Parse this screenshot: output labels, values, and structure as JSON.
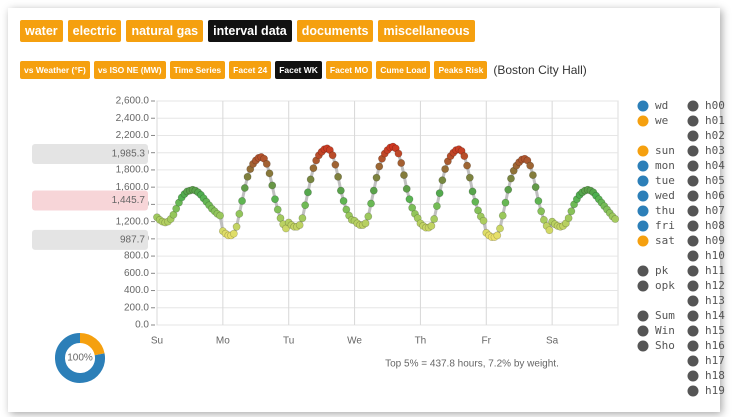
{
  "nav": {
    "tabs": [
      "water",
      "electric",
      "natural gas",
      "interval data",
      "documents",
      "miscellaneous"
    ],
    "active_index": 3
  },
  "subnav": {
    "tabs": [
      "vs Weather (°F)",
      "vs ISO NE (MW)",
      "Time Series",
      "Facet 24",
      "Facet WK",
      "Facet MO",
      "Cume Load",
      "Peaks Risk"
    ],
    "active_index": 4,
    "site": "(Boston City Hall)"
  },
  "chart_data": {
    "type": "scatter",
    "annotation": "Top 5% = 437.8 hours, 7.2% by weight.",
    "xlim": [
      0,
      168
    ],
    "xticks": [
      {
        "value": 0,
        "label": "Su"
      },
      {
        "value": 24,
        "label": "Mo"
      },
      {
        "value": 48,
        "label": "Tu"
      },
      {
        "value": 72,
        "label": "We"
      },
      {
        "value": 96,
        "label": "Th"
      },
      {
        "value": 120,
        "label": "Fr"
      },
      {
        "value": 144,
        "label": "Sa"
      }
    ],
    "ylim": [
      0,
      2600
    ],
    "yticks": [
      {
        "value": 0,
        "label": "0.0"
      },
      {
        "value": 200,
        "label": "200.0"
      },
      {
        "value": 400,
        "label": "400.0"
      },
      {
        "value": 600,
        "label": "600.0"
      },
      {
        "value": 800,
        "label": "800.0"
      },
      {
        "value": 1000,
        "label": "1,000.0"
      },
      {
        "value": 1200,
        "label": "1,200.0"
      },
      {
        "value": 1400,
        "label": "1,400.0"
      },
      {
        "value": 1600,
        "label": "1,600.0"
      },
      {
        "value": 1800,
        "label": "1,800.0"
      },
      {
        "value": 2000,
        "label": "2,000.0"
      },
      {
        "value": 2200,
        "label": "2,200.0"
      },
      {
        "value": 2400,
        "label": "2,400.0"
      },
      {
        "value": 2600,
        "label": "2,600.0"
      }
    ],
    "grid": true,
    "trend_color": "#b0b0b0",
    "color_stops": [
      {
        "value": 1000,
        "color": "#f3e36b"
      },
      {
        "value": 1500,
        "color": "#4caf50"
      },
      {
        "value": 2100,
        "color": "#d7301f"
      }
    ],
    "x": [
      0,
      1,
      2,
      3,
      4,
      5,
      6,
      7,
      8,
      9,
      10,
      11,
      12,
      13,
      14,
      15,
      16,
      17,
      18,
      19,
      20,
      21,
      22,
      23,
      24,
      25,
      26,
      27,
      28,
      29,
      30,
      31,
      32,
      33,
      34,
      35,
      36,
      37,
      38,
      39,
      40,
      41,
      42,
      43,
      44,
      45,
      46,
      47,
      48,
      49,
      50,
      51,
      52,
      53,
      54,
      55,
      56,
      57,
      58,
      59,
      60,
      61,
      62,
      63,
      64,
      65,
      66,
      67,
      68,
      69,
      70,
      71,
      72,
      73,
      74,
      75,
      76,
      77,
      78,
      79,
      80,
      81,
      82,
      83,
      84,
      85,
      86,
      87,
      88,
      89,
      90,
      91,
      92,
      93,
      94,
      95,
      96,
      97,
      98,
      99,
      100,
      101,
      102,
      103,
      104,
      105,
      106,
      107,
      108,
      109,
      110,
      111,
      112,
      113,
      114,
      115,
      116,
      117,
      118,
      119,
      120,
      121,
      122,
      123,
      124,
      125,
      126,
      127,
      128,
      129,
      130,
      131,
      132,
      133,
      134,
      135,
      136,
      137,
      138,
      139,
      140,
      141,
      142,
      143,
      144,
      145,
      146,
      147,
      148,
      149,
      150,
      151,
      152,
      153,
      154,
      155,
      156,
      157,
      158,
      159,
      160,
      161,
      162,
      163,
      164,
      165,
      166,
      167
    ],
    "values": [
      1250,
      1220,
      1200,
      1190,
      1200,
      1230,
      1280,
      1350,
      1420,
      1480,
      1520,
      1550,
      1560,
      1570,
      1560,
      1540,
      1510,
      1470,
      1430,
      1390,
      1350,
      1320,
      1290,
      1270,
      1090,
      1060,
      1040,
      1040,
      1060,
      1140,
      1290,
      1440,
      1590,
      1720,
      1810,
      1870,
      1910,
      1940,
      1950,
      1930,
      1870,
      1760,
      1620,
      1460,
      1340,
      1240,
      1170,
      1120,
      1190,
      1160,
      1140,
      1140,
      1160,
      1240,
      1390,
      1540,
      1690,
      1820,
      1910,
      1970,
      2010,
      2040,
      2050,
      2030,
      1970,
      1860,
      1720,
      1560,
      1440,
      1340,
      1270,
      1220,
      1210,
      1180,
      1160,
      1160,
      1180,
      1260,
      1410,
      1560,
      1710,
      1840,
      1930,
      1990,
      2030,
      2060,
      2070,
      2050,
      1990,
      1880,
      1740,
      1580,
      1460,
      1360,
      1290,
      1240,
      1180,
      1150,
      1130,
      1130,
      1150,
      1230,
      1380,
      1530,
      1680,
      1810,
      1900,
      1960,
      2000,
      2030,
      2040,
      2020,
      1960,
      1850,
      1710,
      1550,
      1430,
      1330,
      1260,
      1210,
      1070,
      1040,
      1020,
      1020,
      1040,
      1120,
      1270,
      1420,
      1570,
      1700,
      1790,
      1850,
      1890,
      1920,
      1930,
      1910,
      1850,
      1740,
      1600,
      1440,
      1320,
      1220,
      1150,
      1100,
      1200,
      1170,
      1150,
      1140,
      1150,
      1180,
      1240,
      1320,
      1400,
      1460,
      1510,
      1540,
      1560,
      1570,
      1560,
      1540,
      1500,
      1460,
      1420,
      1380,
      1340,
      1300,
      1260,
      1230
    ],
    "reference_values": [
      {
        "value": 1985.3,
        "label": "1,985.3",
        "color": "#e4e4e4"
      },
      {
        "value": 1445.7,
        "label": "1,445.7",
        "color": "#f7d5d8"
      },
      {
        "value": 987.7,
        "label": "987.7",
        "color": "#e4e4e4"
      }
    ],
    "gauge": {
      "label": "100%",
      "values": [
        22,
        78
      ],
      "colors": [
        "#f5a00f",
        "#2c7fb8"
      ]
    },
    "legend": {
      "columns": [
        [
          [
            {
              "name": "wd",
              "color": "#2c7fb8"
            },
            {
              "name": "we",
              "color": "#f5a00f"
            }
          ],
          [
            {
              "name": "sun",
              "color": "#f5a00f"
            },
            {
              "name": "mon",
              "color": "#2c7fb8"
            },
            {
              "name": "tue",
              "color": "#2c7fb8"
            },
            {
              "name": "wed",
              "color": "#2c7fb8"
            },
            {
              "name": "thu",
              "color": "#2c7fb8"
            },
            {
              "name": "fri",
              "color": "#2c7fb8"
            },
            {
              "name": "sat",
              "color": "#f5a00f"
            }
          ],
          [
            {
              "name": "pk",
              "color": "#555555"
            },
            {
              "name": "opk",
              "color": "#555555"
            }
          ],
          [
            {
              "name": "Sum",
              "color": "#555555"
            },
            {
              "name": "Win",
              "color": "#555555"
            },
            {
              "name": "Sho",
              "color": "#555555"
            }
          ]
        ],
        [
          [
            {
              "name": "h00",
              "color": "#555555"
            },
            {
              "name": "h01",
              "color": "#555555"
            },
            {
              "name": "h02",
              "color": "#555555"
            },
            {
              "name": "h03",
              "color": "#555555"
            },
            {
              "name": "h04",
              "color": "#555555"
            },
            {
              "name": "h05",
              "color": "#555555"
            },
            {
              "name": "h06",
              "color": "#555555"
            },
            {
              "name": "h07",
              "color": "#555555"
            },
            {
              "name": "h08",
              "color": "#555555"
            },
            {
              "name": "h09",
              "color": "#555555"
            },
            {
              "name": "h10",
              "color": "#555555"
            },
            {
              "name": "h11",
              "color": "#555555"
            },
            {
              "name": "h12",
              "color": "#555555"
            },
            {
              "name": "h13",
              "color": "#555555"
            },
            {
              "name": "h14",
              "color": "#555555"
            },
            {
              "name": "h15",
              "color": "#555555"
            },
            {
              "name": "h16",
              "color": "#555555"
            },
            {
              "name": "h17",
              "color": "#555555"
            },
            {
              "name": "h18",
              "color": "#555555"
            },
            {
              "name": "h19",
              "color": "#555555"
            }
          ]
        ]
      ]
    }
  }
}
